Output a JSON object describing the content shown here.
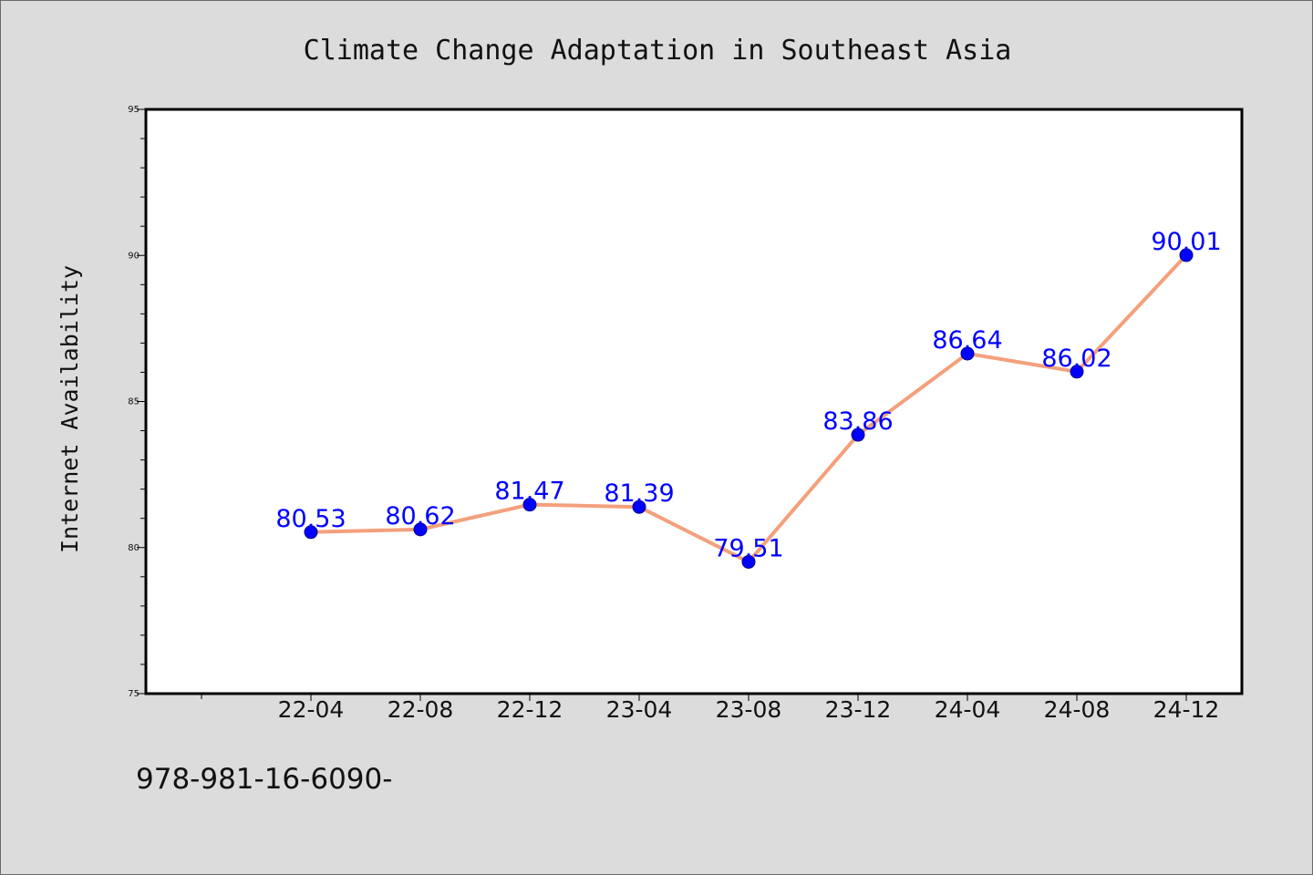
{
  "chart_data": {
    "type": "line",
    "title": "Climate Change Adaptation in Southeast Asia",
    "xlabel": "",
    "ylabel": "Internet Availability",
    "categories": [
      "22-04",
      "22-08",
      "22-12",
      "23-04",
      "23-08",
      "23-12",
      "24-04",
      "24-08",
      "24-12"
    ],
    "series": [
      {
        "values": [
          80.53,
          80.62,
          81.47,
          81.39,
          79.51,
          83.86,
          86.64,
          86.02,
          90.01
        ],
        "labels": [
          "80.53",
          "80.62",
          "81.47",
          "81.39",
          "79.51",
          "83.86",
          "86.64",
          "86.02",
          "90.01"
        ],
        "line_color": "#f4a07c",
        "marker_color": "#0000ff"
      }
    ],
    "ylim": [
      75,
      95
    ],
    "yticks": [
      "75",
      "80",
      "85",
      "90",
      "95"
    ],
    "grid": false,
    "legend": "none"
  },
  "footer_text": "978-981-16-6090-"
}
